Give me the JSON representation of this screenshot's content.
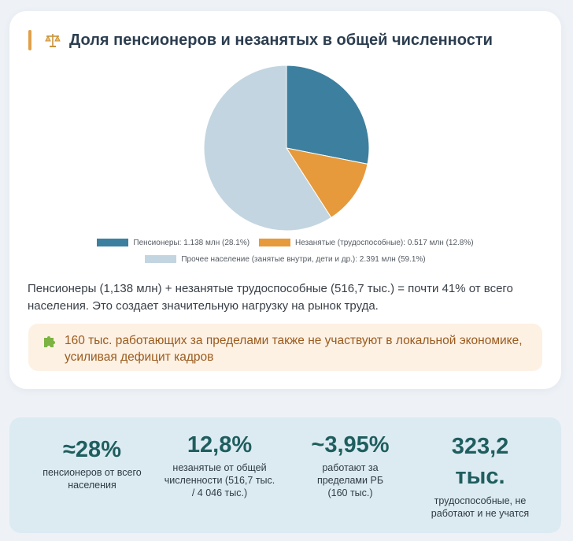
{
  "card": {
    "title": "Доля пенсионеров и незанятых в общей численности",
    "title_icon": "balance-scale-icon",
    "accent_color": "#e0a04a",
    "paragraph": "Пенсионеры (1,138 млн) + незанятые трудоспособные (516,7 тыс.) = почти 41% от всего населения. Это создает значительную нагрузку на рынок труда.",
    "callout_icon": "puzzle-icon",
    "callout": "160 тыс. работающих за пределами также не участвуют в локальной экономике, усиливая дефицит кадров"
  },
  "chart_data": {
    "type": "pie",
    "title": "",
    "slices": [
      {
        "label": "Пенсионеры: 1.138 млн (28.1%)",
        "value": 28.1,
        "color": "#3d7f9e"
      },
      {
        "label": "Незанятые (трудоспособные): 0.517 млн (12.8%)",
        "value": 12.8,
        "color": "#e69a3c"
      },
      {
        "label": "Прочее население (занятые внутри, дети и др.): 2.391 млн (59.1%)",
        "value": 59.1,
        "color": "#c3d5e0"
      }
    ],
    "legend_position": "bottom"
  },
  "stats": [
    {
      "value": "≈28%",
      "label": "пенсионеров от всего населения"
    },
    {
      "value": "12,8%",
      "label": "незанятые от общей численности (516,7 тыс. / 4 046 тыс.)"
    },
    {
      "value": "~3,95%",
      "label": "работают за пределами РБ (160 тыс.)"
    },
    {
      "value": "323,2 тыс.",
      "label": "трудоспособные, не работают и не учатся"
    }
  ]
}
